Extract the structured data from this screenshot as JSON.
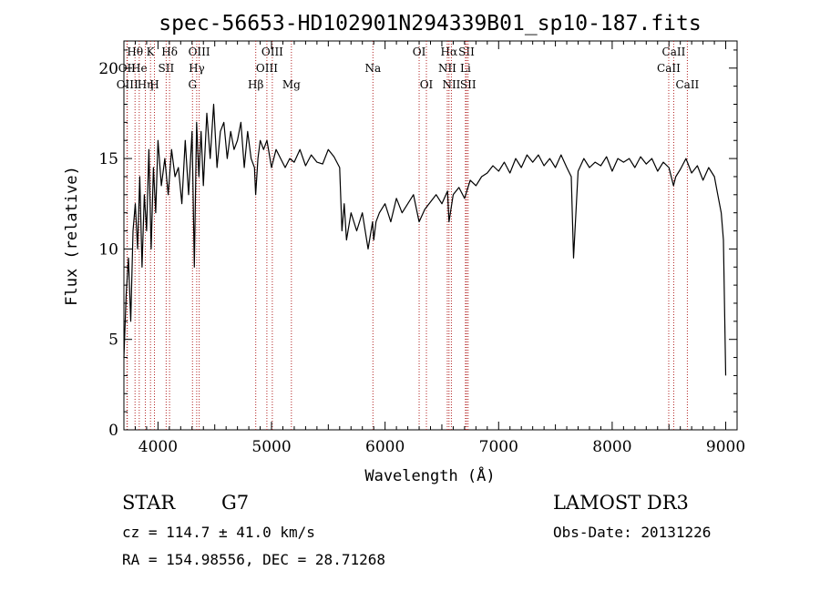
{
  "chart_data": {
    "type": "line",
    "title": "spec-56653-HD102901N294339B01_sp10-187.fits",
    "xlabel": "Wavelength (Å)",
    "ylabel": "Flux (relative)",
    "xlim": [
      3700,
      9100
    ],
    "ylim": [
      0,
      21.5
    ],
    "x_ticks": [
      4000,
      5000,
      6000,
      7000,
      8000,
      9000
    ],
    "y_ticks": [
      0,
      5,
      10,
      15,
      20
    ],
    "grid": false,
    "series": [
      {
        "x": [
          3700,
          3720,
          3740,
          3760,
          3780,
          3800,
          3820,
          3840,
          3860,
          3880,
          3900,
          3920,
          3940,
          3960,
          3980,
          4000,
          4030,
          4060,
          4090,
          4120,
          4150,
          4180,
          4210,
          4240,
          4270,
          4300,
          4320,
          4340,
          4360,
          4380,
          4400,
          4430,
          4460,
          4490,
          4520,
          4550,
          4580,
          4610,
          4640,
          4670,
          4700,
          4730,
          4760,
          4790,
          4820,
          4850,
          4860,
          4880,
          4900,
          4930,
          4960,
          5000,
          5040,
          5080,
          5120,
          5160,
          5200,
          5250,
          5300,
          5350,
          5400,
          5450,
          5500,
          5550,
          5600,
          5620,
          5640,
          5660,
          5700,
          5750,
          5800,
          5850,
          5890,
          5900,
          5920,
          5950,
          6000,
          6050,
          6100,
          6150,
          6200,
          6250,
          6300,
          6350,
          6400,
          6450,
          6500,
          6550,
          6563,
          6600,
          6650,
          6700,
          6750,
          6800,
          6850,
          6900,
          6950,
          7000,
          7050,
          7100,
          7150,
          7200,
          7250,
          7300,
          7350,
          7400,
          7450,
          7500,
          7550,
          7600,
          7640,
          7660,
          7700,
          7750,
          7800,
          7850,
          7900,
          7950,
          8000,
          8050,
          8100,
          8150,
          8200,
          8250,
          8300,
          8350,
          8400,
          8450,
          8500,
          8540,
          8560,
          8600,
          8650,
          8700,
          8750,
          8800,
          8850,
          8900,
          8930,
          8960,
          8980,
          9000
        ],
        "y": [
          4,
          7.5,
          9.5,
          6,
          11,
          12.5,
          10,
          14,
          9,
          13,
          11,
          15.5,
          10,
          14.5,
          12,
          16,
          13.5,
          15,
          13,
          15.5,
          14,
          14.5,
          12.5,
          16,
          13,
          16.5,
          9,
          17,
          14,
          16.5,
          13.5,
          17.5,
          15,
          18,
          14.5,
          16.5,
          17,
          15,
          16.5,
          15.5,
          16,
          17,
          14.5,
          16.5,
          15,
          14.5,
          13,
          15,
          16,
          15.5,
          16,
          14.5,
          15.5,
          15,
          14.5,
          15,
          14.8,
          15.5,
          14.6,
          15.2,
          14.8,
          14.7,
          15.5,
          15.1,
          14.5,
          11,
          12.5,
          10.5,
          12,
          11,
          12,
          10,
          11.5,
          10.5,
          11.5,
          12,
          12.5,
          11.5,
          12.8,
          12,
          12.5,
          13,
          11.5,
          12.2,
          12.6,
          13,
          12.5,
          13.2,
          11.5,
          13,
          13.4,
          12.8,
          13.8,
          13.5,
          14,
          14.2,
          14.6,
          14.3,
          14.8,
          14.2,
          15,
          14.5,
          15.2,
          14.8,
          15.2,
          14.6,
          15,
          14.5,
          15.2,
          14.5,
          14,
          9.5,
          14.3,
          15,
          14.5,
          14.8,
          14.6,
          15.1,
          14.3,
          15,
          14.8,
          15,
          14.5,
          15.1,
          14.7,
          15,
          14.3,
          14.8,
          14.5,
          13.5,
          14,
          14.4,
          15,
          14.2,
          14.6,
          13.8,
          14.5,
          14,
          13,
          12,
          10.5,
          3
        ]
      }
    ],
    "spectral_lines": [
      {
        "label": "Hθ",
        "x": 3798,
        "row": 0
      },
      {
        "label": "OII",
        "x": 3727,
        "row": 1
      },
      {
        "label": "OIII",
        "x": 3730,
        "row": 2
      },
      {
        "label": "He",
        "x": 3835,
        "row": 1
      },
      {
        "label": "Hη",
        "x": 3889,
        "row": 2
      },
      {
        "label": "K",
        "x": 3934,
        "row": 0
      },
      {
        "label": "SII",
        "x": 4072,
        "row": 1
      },
      {
        "label": "H",
        "x": 3969,
        "row": 2
      },
      {
        "label": "Hδ",
        "x": 4102,
        "row": 0
      },
      {
        "label": "OIII",
        "x": 4363,
        "row": 0
      },
      {
        "label": "Hγ",
        "x": 4341,
        "row": 1
      },
      {
        "label": "G",
        "x": 4304,
        "row": 2
      },
      {
        "label": "Hβ",
        "x": 4861,
        "row": 2
      },
      {
        "label": "OIII",
        "x": 5007,
        "row": 0
      },
      {
        "label": "OIII",
        "x": 4959,
        "row": 1
      },
      {
        "label": "Mg",
        "x": 5175,
        "row": 2
      },
      {
        "label": "Na",
        "x": 5893,
        "row": 1
      },
      {
        "label": "OI",
        "x": 6300,
        "row": 0
      },
      {
        "label": "OI",
        "x": 6364,
        "row": 2
      },
      {
        "label": "Hα",
        "x": 6563,
        "row": 0
      },
      {
        "label": "SII",
        "x": 6717,
        "row": 0
      },
      {
        "label": "NII",
        "x": 6548,
        "row": 1
      },
      {
        "label": "Li",
        "x": 6708,
        "row": 1
      },
      {
        "label": "NII",
        "x": 6584,
        "row": 2
      },
      {
        "label": "SII",
        "x": 6731,
        "row": 2
      },
      {
        "label": "CaII",
        "x": 8542,
        "row": 0
      },
      {
        "label": "CaII",
        "x": 8498,
        "row": 1
      },
      {
        "label": "CaII",
        "x": 8662,
        "row": 2
      }
    ]
  },
  "info": {
    "object_class": "STAR",
    "subclass": "G7",
    "survey": "LAMOST DR3",
    "cz": "cz = 114.7 ± 41.0 km/s",
    "obs_date": "Obs-Date: 20131226",
    "radec": "RA = 154.98556, DEC =  28.71268"
  }
}
